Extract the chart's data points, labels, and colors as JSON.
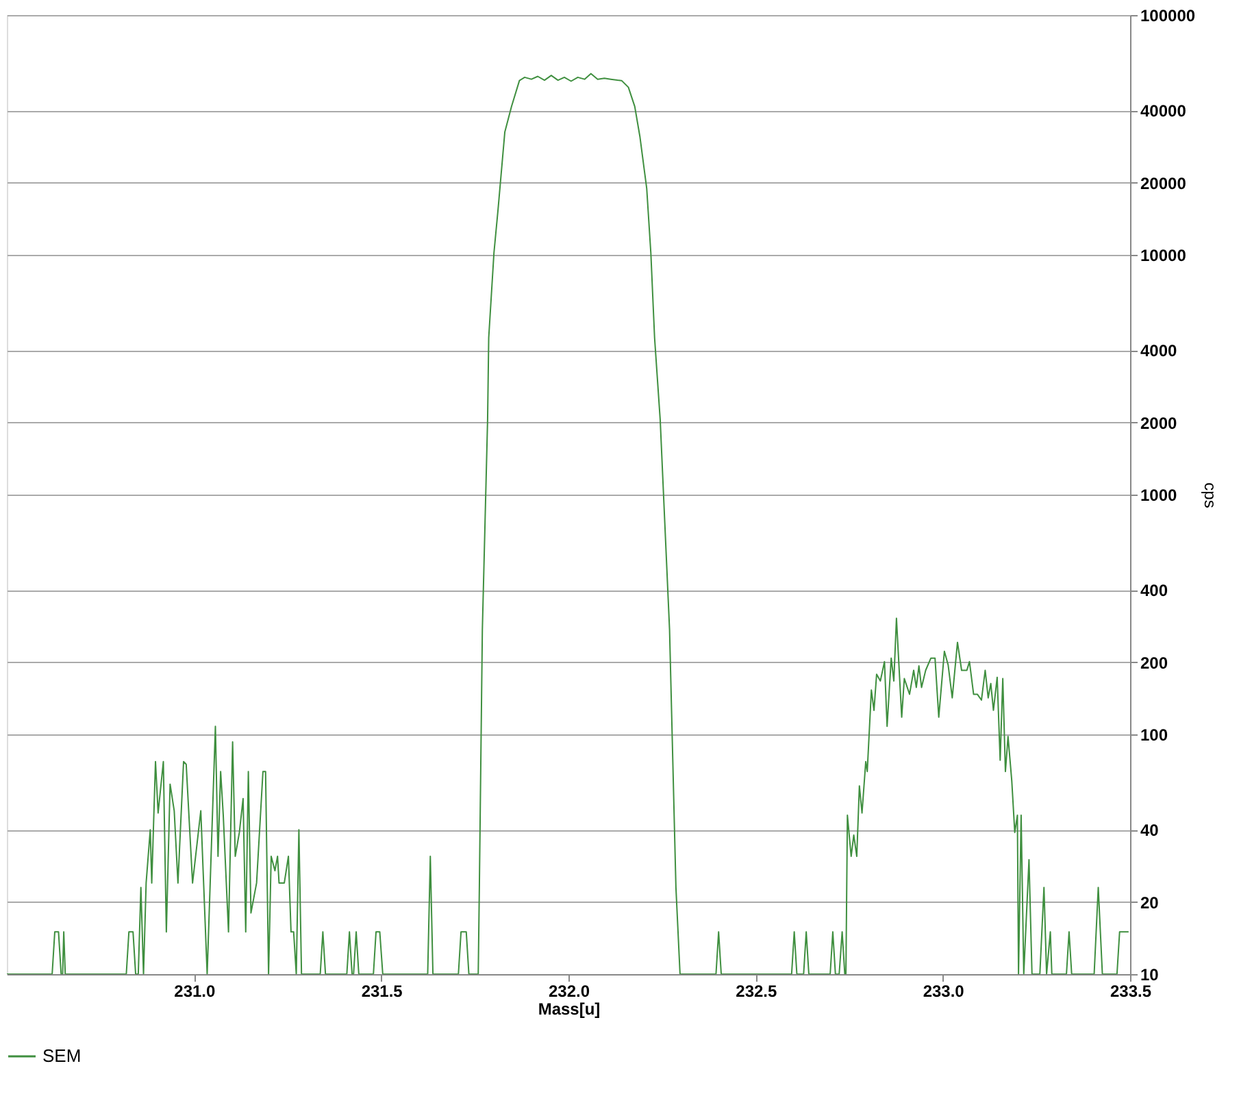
{
  "chart_data": {
    "type": "line",
    "xlabel": "Mass[u]",
    "ylabel": "cps",
    "log": "y",
    "grid": "y",
    "legend": "bottom left",
    "marker": "none",
    "line_style": "solid",
    "xlim": [
      230.5,
      233.5
    ],
    "xticks": [
      {
        "value": 231,
        "label": "231.0"
      },
      {
        "value": 231.5,
        "label": "231.5"
      },
      {
        "value": 232,
        "label": "232.0"
      },
      {
        "value": 232.5,
        "label": "232.5"
      },
      {
        "value": 233,
        "label": "233.0"
      },
      {
        "value": 233.5,
        "label": "233.5"
      }
    ],
    "ylim": [
      10,
      100000
    ],
    "yticks": [
      10,
      20,
      40,
      100,
      200,
      400,
      1000,
      2000,
      4000,
      10000,
      20000,
      40000,
      100000
    ],
    "series": [
      {
        "name": "SEM",
        "color": "#3f8f3f",
        "x": [
          230.5,
          230.621,
          230.628,
          230.638,
          230.645,
          230.649,
          230.652,
          230.656,
          230.819,
          230.826,
          230.837,
          230.844,
          230.851,
          230.858,
          230.865,
          230.872,
          230.883,
          230.887,
          230.897,
          230.904,
          230.918,
          230.926,
          230.936,
          230.947,
          230.957,
          230.972,
          230.979,
          230.996,
          231.018,
          231.035,
          231.057,
          231.064,
          231.071,
          231.078,
          231.092,
          231.103,
          231.11,
          231.121,
          231.131,
          231.138,
          231.145,
          231.152,
          231.167,
          231.184,
          231.191,
          231.199,
          231.206,
          231.216,
          231.223,
          231.227,
          231.241,
          231.252,
          231.259,
          231.266,
          231.273,
          231.28,
          231.287,
          231.337,
          231.344,
          231.351,
          231.408,
          231.415,
          231.422,
          231.426,
          231.433,
          231.44,
          231.479,
          231.486,
          231.496,
          231.504,
          231.624,
          231.631,
          231.638,
          231.706,
          231.713,
          231.727,
          231.734,
          231.759,
          231.762,
          231.77,
          231.784,
          231.787,
          231.801,
          231.812,
          231.83,
          231.848,
          231.869,
          231.883,
          231.901,
          231.918,
          231.936,
          231.954,
          231.972,
          231.989,
          232.007,
          232.025,
          232.043,
          232.06,
          232.078,
          232.096,
          232.113,
          232.131,
          232.142,
          232.16,
          232.177,
          232.191,
          232.209,
          232.22,
          232.23,
          232.245,
          232.27,
          232.287,
          232.298,
          232.394,
          232.401,
          232.408,
          232.596,
          232.603,
          232.61,
          232.628,
          232.635,
          232.642,
          232.699,
          232.706,
          232.713,
          232.723,
          232.731,
          232.738,
          232.741,
          232.745,
          232.755,
          232.762,
          232.77,
          232.777,
          232.784,
          232.794,
          232.798,
          232.809,
          232.816,
          232.823,
          232.833,
          232.844,
          232.851,
          232.862,
          232.869,
          232.876,
          232.89,
          232.897,
          232.911,
          232.922,
          232.929,
          232.936,
          232.943,
          232.954,
          232.968,
          232.979,
          232.989,
          233.004,
          233.014,
          233.025,
          233.039,
          233.05,
          233.064,
          233.071,
          233.082,
          233.092,
          233.103,
          233.113,
          233.121,
          233.128,
          233.135,
          233.145,
          233.153,
          233.16,
          233.167,
          233.174,
          233.184,
          233.192,
          233.199,
          233.202,
          233.209,
          233.216,
          233.23,
          233.238,
          233.259,
          233.27,
          233.277,
          233.287,
          233.291,
          233.33,
          233.337,
          233.344,
          233.404,
          233.415,
          233.426,
          233.465,
          233.472,
          233.496
        ],
        "values": [
          10,
          10,
          15,
          15,
          10,
          10,
          15,
          10,
          10,
          15,
          15,
          10,
          10,
          23,
          10,
          24,
          40,
          24,
          77,
          47,
          77,
          15,
          62,
          48,
          24,
          77,
          75,
          24,
          48,
          10,
          108,
          31,
          70,
          46,
          15,
          93,
          31,
          39,
          54,
          15,
          70,
          18,
          24,
          70,
          70,
          10,
          31,
          27,
          31,
          24,
          24,
          31,
          15,
          15,
          10,
          40,
          10,
          10,
          15,
          10,
          10,
          15,
          10,
          10,
          15,
          10,
          10,
          15,
          15,
          10,
          10,
          31,
          10,
          10,
          15,
          15,
          10,
          10,
          23,
          273,
          2050,
          4510,
          10200,
          15500,
          32500,
          41600,
          53300,
          55000,
          54000,
          55500,
          53500,
          56000,
          53500,
          55000,
          53000,
          55000,
          54000,
          57000,
          54000,
          54500,
          54000,
          53500,
          53300,
          50000,
          41600,
          31000,
          18900,
          10200,
          4510,
          2050,
          273,
          23,
          10,
          10,
          15,
          10,
          10,
          15,
          10,
          10,
          15,
          10,
          10,
          15,
          10,
          10,
          15,
          10,
          10,
          46,
          31,
          38,
          31,
          61,
          47,
          77,
          70,
          153,
          126,
          178,
          167,
          201,
          108,
          208,
          167,
          305,
          118,
          171,
          147,
          185,
          157,
          193,
          157,
          185,
          208,
          208,
          118,
          222,
          195,
          142,
          242,
          185,
          185,
          201,
          147,
          147,
          139,
          185,
          142,
          163,
          126,
          173,
          78,
          171,
          70,
          98,
          64,
          39,
          46,
          10,
          46,
          10,
          30,
          10,
          10,
          23,
          10,
          15,
          10,
          10,
          15,
          10,
          10,
          23,
          10,
          10,
          15,
          15
        ]
      }
    ]
  }
}
